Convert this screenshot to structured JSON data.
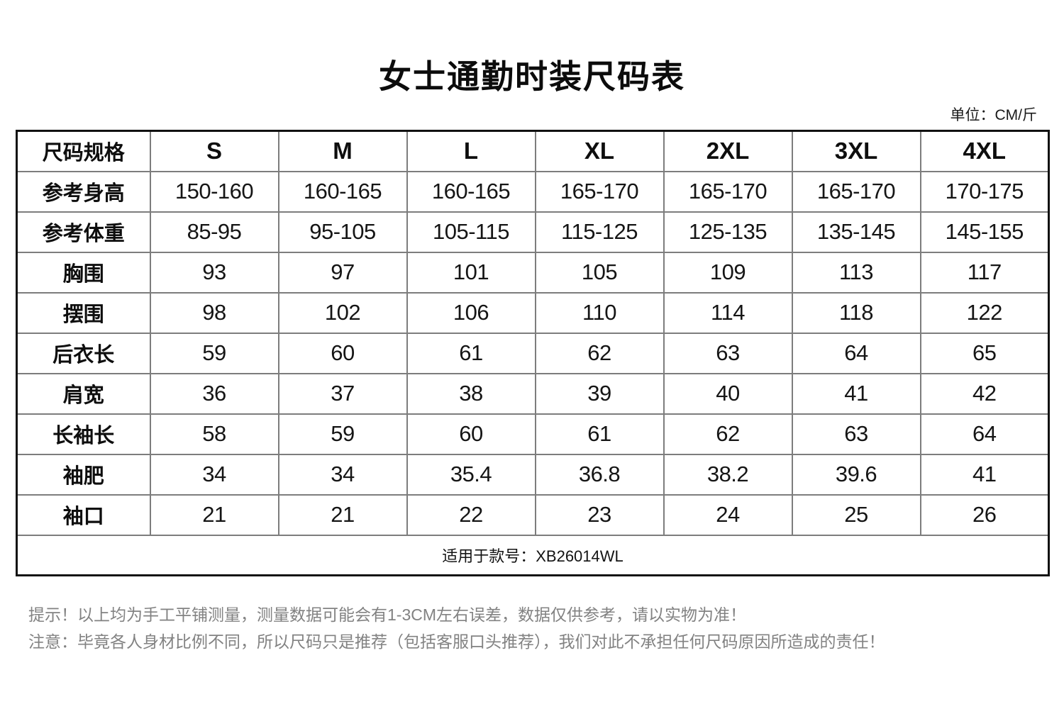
{
  "page": {
    "title": "女士通勤时装尺码表",
    "unit_label": "单位：CM/斤"
  },
  "table": {
    "header": [
      "尺码规格",
      "S",
      "M",
      "L",
      "XL",
      "2XL",
      "3XL",
      "4XL"
    ],
    "rows": [
      {
        "label": "参考身高",
        "values": [
          "150-160",
          "160-165",
          "160-165",
          "165-170",
          "165-170",
          "165-170",
          "170-175"
        ]
      },
      {
        "label": "参考体重",
        "values": [
          "85-95",
          "95-105",
          "105-115",
          "115-125",
          "125-135",
          "135-145",
          "145-155"
        ]
      },
      {
        "label": "胸围",
        "values": [
          "93",
          "97",
          "101",
          "105",
          "109",
          "113",
          "117"
        ]
      },
      {
        "label": "摆围",
        "values": [
          "98",
          "102",
          "106",
          "110",
          "114",
          "118",
          "122"
        ]
      },
      {
        "label": "后衣长",
        "values": [
          "59",
          "60",
          "61",
          "62",
          "63",
          "64",
          "65"
        ]
      },
      {
        "label": "肩宽",
        "values": [
          "36",
          "37",
          "38",
          "39",
          "40",
          "41",
          "42"
        ]
      },
      {
        "label": "长袖长",
        "values": [
          "58",
          "59",
          "60",
          "61",
          "62",
          "63",
          "64"
        ]
      },
      {
        "label": "袖肥",
        "values": [
          "34",
          "34",
          "35.4",
          "36.8",
          "38.2",
          "39.6",
          "41"
        ]
      },
      {
        "label": "袖口",
        "values": [
          "21",
          "21",
          "22",
          "23",
          "24",
          "25",
          "26"
        ]
      }
    ],
    "footer_note": "适用于款号：XB26014WL"
  },
  "notes": {
    "line1": "提示！以上均为手工平铺测量，测量数据可能会有1-3CM左右误差，数据仅供参考，请以实物为准！",
    "line2": "注意：毕竟各人身材比例不同，所以尺码只是推荐（包括客服口头推荐），我们对此不承担任何尺码原因所造成的责任！"
  },
  "colors": {
    "text": "#111111",
    "outer_border": "#111111",
    "grid_line": "#7d7d7d",
    "note_text": "#828282",
    "background": "#ffffff"
  }
}
